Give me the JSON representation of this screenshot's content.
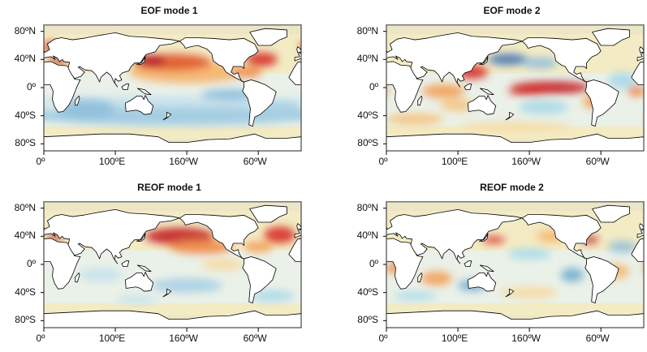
{
  "figure": {
    "colormap": "RdYlBu_r",
    "panels": [
      {
        "title": "EOF mode 1"
      },
      {
        "title": "EOF mode 2"
      },
      {
        "title": "REOF mode 1"
      },
      {
        "title": "REOF mode 2"
      }
    ],
    "y_ticks": [
      {
        "label": "80ºN",
        "lat": 80
      },
      {
        "label": "40ºN",
        "lat": 40
      },
      {
        "label": "0º",
        "lat": 0
      },
      {
        "label": "40ºS",
        "lat": -40
      },
      {
        "label": "80ºS",
        "lat": -80
      }
    ],
    "x_ticks": [
      {
        "label": "0º",
        "lon": 0
      },
      {
        "label": "100ºE",
        "lon": 100
      },
      {
        "label": "160ºW",
        "lon": 200
      },
      {
        "label": "60ºW",
        "lon": 300
      }
    ],
    "lon_range": [
      0,
      360
    ],
    "lat_range": [
      -90,
      90
    ],
    "colors": {
      "positive": "#c41f26",
      "neutral": "#f3ebc4",
      "negative": "#4575b4",
      "land": "#ffffff",
      "coastline": "#000000"
    }
  }
}
